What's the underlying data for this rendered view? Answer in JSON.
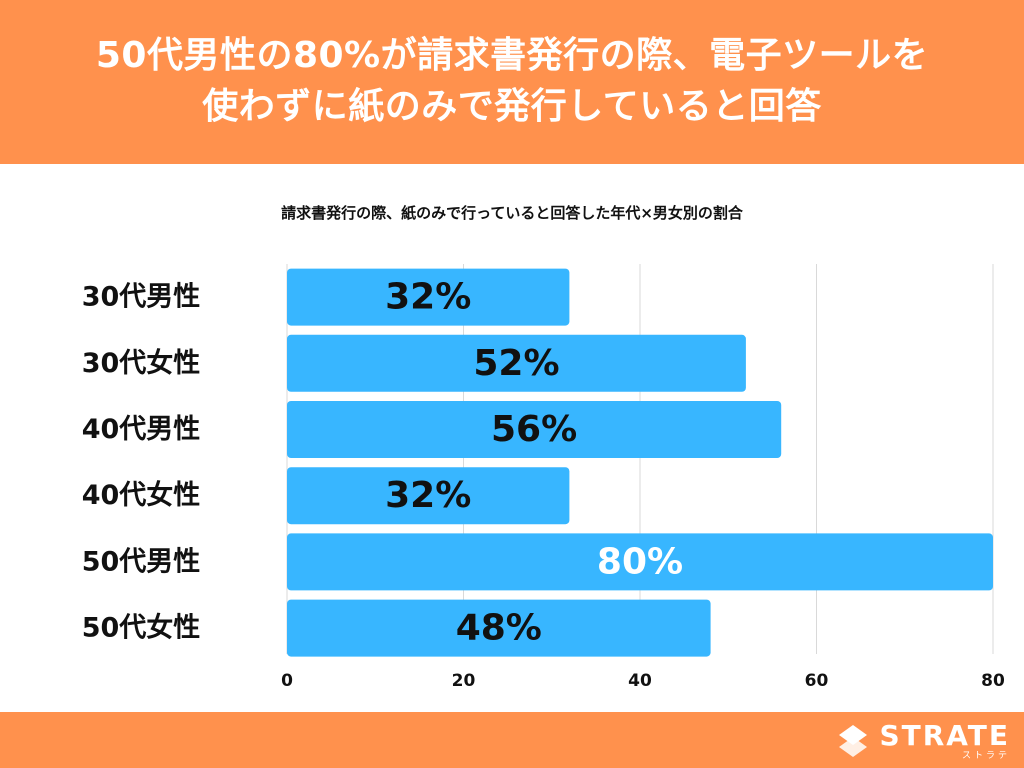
{
  "header": {
    "line1": "50代男性の80%が請求書発行の際、電子ツールを",
    "line2": "使わずに紙のみで発行していると回答"
  },
  "chart_data": {
    "type": "bar",
    "orientation": "horizontal",
    "title": "請求書発行の際、紙のみで行っていると回答した年代×男女別の割合",
    "categories": [
      "30代男性",
      "30代女性",
      "40代男性",
      "40代女性",
      "50代男性",
      "50代女性"
    ],
    "values": [
      32,
      52,
      56,
      32,
      80,
      48
    ],
    "data_labels": [
      "32%",
      "52%",
      "56%",
      "32%",
      "80%",
      "48%"
    ],
    "highlight_index": 4,
    "xlim": [
      0,
      80
    ],
    "xticks": [
      0,
      20,
      40,
      60,
      80
    ],
    "grid": true,
    "colors": {
      "bar": "#38b6ff",
      "label": "#111111",
      "highlight_label": "#ffffff",
      "grid": "#d9d9d9",
      "category": "#111111"
    }
  },
  "footer": {
    "brand": "STRATE",
    "brand_kana": "ストラテ"
  },
  "colors": {
    "accent": "#ff914d",
    "text_on_accent": "#ffffff"
  }
}
